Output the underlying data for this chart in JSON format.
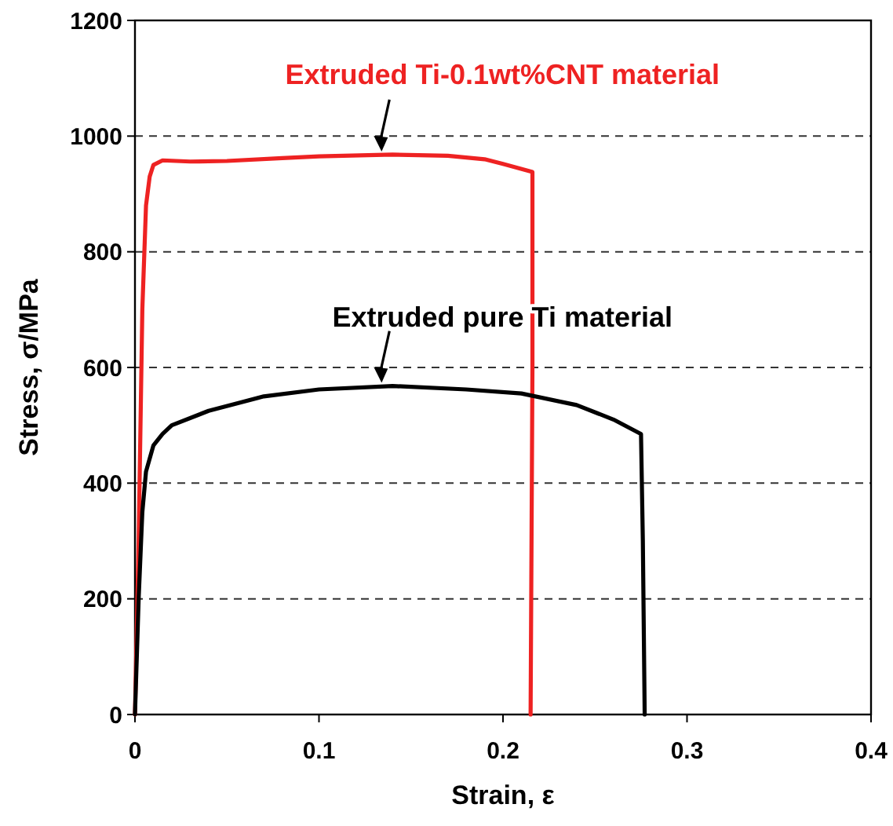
{
  "chart_data": {
    "type": "line",
    "xlabel": "Strain, ε",
    "ylabel": "Stress, σ/MPa",
    "xlim": [
      0,
      0.4
    ],
    "xticks": [
      0,
      0.1,
      0.2,
      0.3,
      0.4
    ],
    "ylim": [
      0,
      1200
    ],
    "yticks": [
      0,
      200,
      400,
      600,
      800,
      1000,
      1200
    ],
    "grid": "y",
    "marker": "none",
    "line_style": "solid",
    "series": [
      {
        "name": "Extruded Ti-0.1wt%CNT material",
        "color": "#ee2222",
        "x": [
          0,
          0.002,
          0.004,
          0.006,
          0.008,
          0.01,
          0.015,
          0.03,
          0.05,
          0.08,
          0.1,
          0.14,
          0.17,
          0.19,
          0.2,
          0.216,
          0.216,
          0.215
        ],
        "values": [
          0,
          300,
          700,
          880,
          930,
          950,
          958,
          956,
          957,
          962,
          965,
          968,
          966,
          960,
          952,
          938,
          600,
          0
        ]
      },
      {
        "name": "Extruded pure Ti material",
        "color": "#000000",
        "x": [
          0,
          0.002,
          0.004,
          0.006,
          0.01,
          0.015,
          0.02,
          0.04,
          0.07,
          0.1,
          0.14,
          0.18,
          0.21,
          0.24,
          0.26,
          0.275,
          0.276,
          0.277
        ],
        "values": [
          0,
          200,
          350,
          420,
          465,
          485,
          500,
          525,
          550,
          562,
          568,
          562,
          555,
          535,
          510,
          485,
          300,
          0
        ]
      }
    ]
  }
}
